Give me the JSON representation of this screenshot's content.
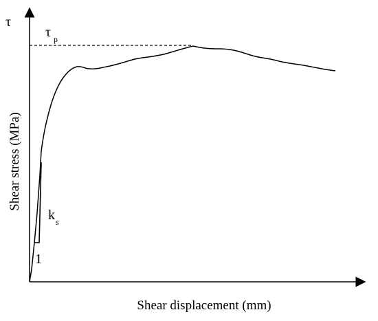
{
  "figure": {
    "y_axis_symbol": "τ",
    "y_axis_label": "Shear stress (MPa)",
    "x_axis_label": "Shear displacement (mm)",
    "peak_label_main": "τ",
    "peak_label_sub": "p",
    "stiffness_label_main": "k",
    "stiffness_label_sub": "s",
    "slope_unit_label": "1",
    "line_color": "#000000",
    "background_color": "#ffffff"
  }
}
